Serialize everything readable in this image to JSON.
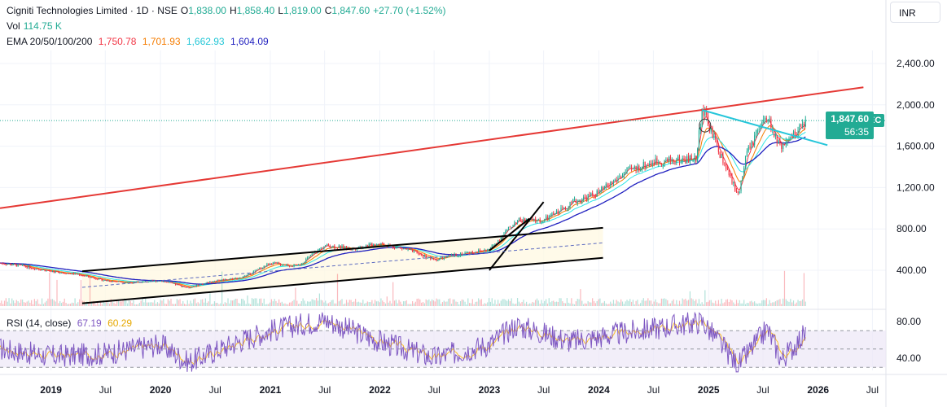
{
  "legend": {
    "title": "Cigniti Technologies Limited · 1D · NSE",
    "o_label": "O",
    "o_value": "1,838.00",
    "h_label": "H",
    "h_value": "1,858.40",
    "l_label": "L",
    "l_value": "1,819.00",
    "c_label": "C",
    "c_value": "1,847.60",
    "change": "+27.70 (+1.52%)",
    "vol_label": "Vol",
    "vol_value": "114.75 K",
    "ema_label": "EMA 20/50/100/200",
    "ema20": "1,750.78",
    "ema50": "1,701.93",
    "ema100": "1,662.93",
    "ema200": "1,604.09",
    "rsi_label": "RSI (14, close)",
    "rsi_value": "67.19",
    "rsi_ma": "60.29"
  },
  "toolbar": {
    "currency": "INR"
  },
  "price_tag": {
    "symbol": "CIGNITITEC",
    "price": "1,847.60",
    "countdown": "56:35"
  },
  "colors": {
    "up": "#22ab94",
    "down": "#f23645",
    "ema20": "#f23645",
    "ema50": "#f57c00",
    "ema100": "#2ee6e6",
    "ema200": "#1f1fbf",
    "rsi": "#7e57c2",
    "rsi_ma": "#fbc02d",
    "trend_red": "#e53935",
    "trend_cyan": "#26c6da"
  },
  "chart_data": {
    "type": "candlestick",
    "symbol": "Cigniti Technologies Limited",
    "interval": "1D",
    "exchange": "NSE",
    "y_axis": {
      "ticks": [
        400,
        800,
        1200,
        1600,
        2000,
        2400
      ],
      "tick_labels": [
        "400.00",
        "800.00",
        "1,200.00",
        "1,600.00",
        "2,000.00",
        "2,400.00"
      ],
      "range": [
        0,
        2700
      ]
    },
    "x_axis": {
      "ticks": [
        {
          "date": "2019-01-01",
          "label": "2019"
        },
        {
          "date": "2019-07-01",
          "label": "Jul"
        },
        {
          "date": "2020-01-01",
          "label": "2020"
        },
        {
          "date": "2020-07-01",
          "label": "Jul"
        },
        {
          "date": "2021-01-01",
          "label": "2021"
        },
        {
          "date": "2021-07-01",
          "label": "Jul"
        },
        {
          "date": "2022-01-01",
          "label": "2022"
        },
        {
          "date": "2022-07-01",
          "label": "Jul"
        },
        {
          "date": "2023-01-01",
          "label": "2023"
        },
        {
          "date": "2023-07-01",
          "label": "Jul"
        },
        {
          "date": "2024-01-01",
          "label": "2024"
        },
        {
          "date": "2024-07-01",
          "label": "Jul"
        },
        {
          "date": "2025-01-01",
          "label": "2025"
        },
        {
          "date": "2025-07-01",
          "label": "Jul"
        },
        {
          "date": "2026-01-01",
          "label": "2026"
        },
        {
          "date": "2026-07-01",
          "label": "Jul"
        }
      ],
      "range": [
        "2018-07-15",
        "2026-08-15"
      ]
    },
    "price_series": [
      {
        "date": "2018-07-15",
        "close": 470
      },
      {
        "date": "2018-10-01",
        "close": 440
      },
      {
        "date": "2019-01-01",
        "close": 390
      },
      {
        "date": "2019-04-01",
        "close": 360
      },
      {
        "date": "2019-07-01",
        "close": 300
      },
      {
        "date": "2019-10-01",
        "close": 280
      },
      {
        "date": "2020-01-01",
        "close": 300
      },
      {
        "date": "2020-04-01",
        "close": 230
      },
      {
        "date": "2020-07-01",
        "close": 300
      },
      {
        "date": "2020-10-01",
        "close": 330
      },
      {
        "date": "2021-01-01",
        "close": 470
      },
      {
        "date": "2021-04-01",
        "close": 440
      },
      {
        "date": "2021-07-01",
        "close": 640
      },
      {
        "date": "2021-10-01",
        "close": 610
      },
      {
        "date": "2022-01-01",
        "close": 660
      },
      {
        "date": "2022-04-01",
        "close": 600
      },
      {
        "date": "2022-07-01",
        "close": 500
      },
      {
        "date": "2022-10-01",
        "close": 560
      },
      {
        "date": "2023-01-01",
        "close": 600
      },
      {
        "date": "2023-04-01",
        "close": 880
      },
      {
        "date": "2023-07-01",
        "close": 880
      },
      {
        "date": "2023-10-01",
        "close": 1050
      },
      {
        "date": "2024-01-01",
        "close": 1150
      },
      {
        "date": "2024-04-01",
        "close": 1350
      },
      {
        "date": "2024-07-01",
        "close": 1450
      },
      {
        "date": "2024-11-20",
        "close": 1480
      },
      {
        "date": "2024-12-10",
        "close": 1960
      },
      {
        "date": "2025-01-15",
        "close": 1700
      },
      {
        "date": "2025-03-01",
        "close": 1380
      },
      {
        "date": "2025-04-10",
        "close": 1120
      },
      {
        "date": "2025-05-10",
        "close": 1550
      },
      {
        "date": "2025-07-15",
        "close": 1880
      },
      {
        "date": "2025-09-01",
        "close": 1550
      },
      {
        "date": "2025-10-15",
        "close": 1720
      },
      {
        "date": "2025-11-20",
        "close": 1847.6
      }
    ],
    "ema_last": {
      "ema20": 1750.78,
      "ema50": 1701.93,
      "ema100": 1662.93,
      "ema200": 1604.09
    },
    "last": {
      "open": 1838.0,
      "high": 1858.4,
      "low": 1819.0,
      "close": 1847.6,
      "change": 27.7,
      "change_pct": 1.52,
      "volume": "114.75 K"
    },
    "trendlines": [
      {
        "color": "red",
        "from": {
          "date": "2018-07-15",
          "price": 1000
        },
        "to": {
          "date": "2026-06-01",
          "price": 2170
        }
      },
      {
        "color": "cyan",
        "from": {
          "date": "2024-12-10",
          "price": 1950
        },
        "to": {
          "date": "2026-02-01",
          "price": 1610
        }
      },
      {
        "color": "black",
        "from": {
          "date": "2019-04-15",
          "price": 390
        },
        "to": {
          "date": "2024-01-15",
          "price": 810
        }
      },
      {
        "color": "black",
        "from": {
          "date": "2019-04-15",
          "price": 80
        },
        "to": {
          "date": "2024-01-15",
          "price": 520
        }
      },
      {
        "color": "black",
        "from": {
          "date": "2023-01-01",
          "price": 400
        },
        "to": {
          "date": "2023-07-01",
          "price": 1060
        }
      },
      {
        "color": "black",
        "from": {
          "date": "2023-01-01",
          "price": 590
        },
        "to": {
          "date": "2023-05-15",
          "price": 900
        }
      }
    ],
    "rsi": {
      "length": 14,
      "source": "close",
      "y_ticks": [
        40,
        80
      ],
      "tick_labels": [
        "40.00",
        "80.00"
      ],
      "band": [
        30,
        70
      ],
      "middle": 50,
      "last": 67.19,
      "ma_last": 60.29,
      "series": [
        {
          "date": "2018-07-15",
          "value": 50
        },
        {
          "date": "2019-01-01",
          "value": 42
        },
        {
          "date": "2019-07-01",
          "value": 45
        },
        {
          "date": "2020-01-01",
          "value": 55
        },
        {
          "date": "2020-04-01",
          "value": 35
        },
        {
          "date": "2020-10-01",
          "value": 60
        },
        {
          "date": "2021-01-01",
          "value": 70
        },
        {
          "date": "2021-07-01",
          "value": 82
        },
        {
          "date": "2022-01-01",
          "value": 58
        },
        {
          "date": "2022-07-01",
          "value": 40
        },
        {
          "date": "2023-01-01",
          "value": 55
        },
        {
          "date": "2023-04-01",
          "value": 76
        },
        {
          "date": "2023-10-01",
          "value": 58
        },
        {
          "date": "2024-04-01",
          "value": 68
        },
        {
          "date": "2024-12-10",
          "value": 80
        },
        {
          "date": "2025-04-10",
          "value": 32
        },
        {
          "date": "2025-07-15",
          "value": 72
        },
        {
          "date": "2025-09-01",
          "value": 38
        },
        {
          "date": "2025-11-20",
          "value": 67.19
        }
      ]
    }
  }
}
